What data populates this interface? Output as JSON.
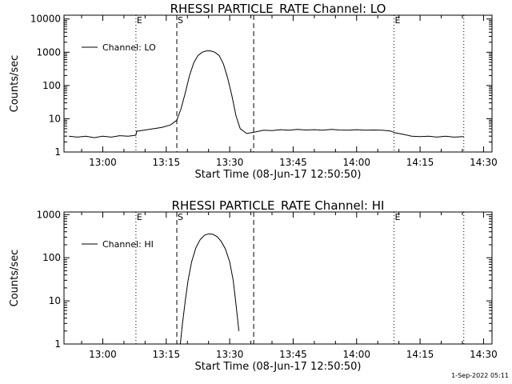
{
  "footer_timestamp": "1-Sep-2022 05:11",
  "chart_data": [
    {
      "type": "line",
      "title": "RHESSI PARTICLE_RATE Channel: LO",
      "xlabel": "Start Time (08-Jun-17 12:50:50)",
      "ylabel": "Counts/sec",
      "yscale": "log",
      "xlim": [
        "12:50:50",
        "14:32:00"
      ],
      "ylim": [
        1,
        13000
      ],
      "x_ticks": [
        "13:00",
        "13:15",
        "13:30",
        "13:45",
        "14:00",
        "14:15",
        "14:30"
      ],
      "y_ticks": [
        "1",
        "10",
        "100",
        "1000",
        "10000"
      ],
      "legend": {
        "position": "top-left",
        "entries": [
          "Channel: LO"
        ]
      },
      "vertical_markers": [
        {
          "time": "13:07:50",
          "style": "dotted",
          "label": "E"
        },
        {
          "time": "13:17:30",
          "style": "dashed",
          "label": "S"
        },
        {
          "time": "13:35:40",
          "style": "dashed",
          "label": ""
        },
        {
          "time": "14:08:50",
          "style": "dotted",
          "label": "E"
        },
        {
          "time": "14:25:20",
          "style": "dotted",
          "label": ""
        }
      ],
      "series": [
        {
          "name": "Channel: LO",
          "points": [
            [
              "12:52:00",
              3.0
            ],
            [
              "12:54:00",
              2.8
            ],
            [
              "12:56:00",
              3.0
            ],
            [
              "12:58:00",
              2.7
            ],
            [
              "13:00:00",
              3.0
            ],
            [
              "13:02:00",
              2.8
            ],
            [
              "13:04:00",
              3.1
            ],
            [
              "13:06:00",
              3.0
            ],
            [
              "13:07:50",
              3.2
            ],
            [
              "13:08:00",
              4.2
            ],
            [
              "13:10:00",
              4.6
            ],
            [
              "13:12:00",
              5.0
            ],
            [
              "13:14:00",
              5.5
            ],
            [
              "13:16:00",
              6.5
            ],
            [
              "13:17:30",
              9.0
            ],
            [
              "13:18:30",
              20
            ],
            [
              "13:19:30",
              60
            ],
            [
              "13:20:30",
              200
            ],
            [
              "13:21:30",
              480
            ],
            [
              "13:22:30",
              800
            ],
            [
              "13:23:30",
              1000
            ],
            [
              "13:24:30",
              1100
            ],
            [
              "13:25:30",
              1100
            ],
            [
              "13:26:30",
              1000
            ],
            [
              "13:27:30",
              800
            ],
            [
              "13:28:30",
              450
            ],
            [
              "13:29:30",
              170
            ],
            [
              "13:30:30",
              50
            ],
            [
              "13:31:30",
              12
            ],
            [
              "13:32:30",
              5.0
            ],
            [
              "13:34:00",
              3.6
            ],
            [
              "13:36:00",
              4.0
            ],
            [
              "13:38:00",
              4.5
            ],
            [
              "13:40:00",
              4.4
            ],
            [
              "13:42:00",
              4.7
            ],
            [
              "13:44:00",
              4.5
            ],
            [
              "13:46:00",
              4.8
            ],
            [
              "13:48:00",
              4.6
            ],
            [
              "13:50:00",
              4.7
            ],
            [
              "13:52:00",
              4.5
            ],
            [
              "13:54:00",
              4.8
            ],
            [
              "13:56:00",
              4.6
            ],
            [
              "13:58:00",
              4.5
            ],
            [
              "14:00:00",
              4.7
            ],
            [
              "14:02:00",
              4.5
            ],
            [
              "14:04:00",
              4.6
            ],
            [
              "14:06:00",
              4.5
            ],
            [
              "14:08:00",
              4.3
            ],
            [
              "14:09:00",
              3.8
            ],
            [
              "14:11:00",
              3.4
            ],
            [
              "14:13:00",
              3.0
            ],
            [
              "14:15:00",
              2.9
            ],
            [
              "14:17:00",
              3.0
            ],
            [
              "14:19:00",
              2.8
            ],
            [
              "14:21:00",
              3.0
            ],
            [
              "14:23:00",
              2.8
            ],
            [
              "14:25:20",
              2.9
            ]
          ]
        }
      ]
    },
    {
      "type": "line",
      "title": "RHESSI PARTICLE_RATE Channel: HI",
      "xlabel": "Start Time (08-Jun-17 12:50:50)",
      "ylabel": "Counts/sec",
      "yscale": "log",
      "xlim": [
        "12:50:50",
        "14:32:00"
      ],
      "ylim": [
        1,
        1150
      ],
      "x_ticks": [
        "13:00",
        "13:15",
        "13:30",
        "13:45",
        "14:00",
        "14:15",
        "14:30"
      ],
      "y_ticks": [
        "1",
        "10",
        "100",
        "1000"
      ],
      "legend": {
        "position": "top-left",
        "entries": [
          "Channel: HI"
        ]
      },
      "vertical_markers": [
        {
          "time": "13:07:50",
          "style": "dotted",
          "label": "E"
        },
        {
          "time": "13:17:30",
          "style": "dashed",
          "label": "S"
        },
        {
          "time": "13:35:40",
          "style": "dashed",
          "label": ""
        },
        {
          "time": "14:08:50",
          "style": "dotted",
          "label": "E"
        },
        {
          "time": "14:25:20",
          "style": "dotted",
          "label": ""
        }
      ],
      "series": [
        {
          "name": "Channel: HI",
          "points": [
            [
              "13:18:20",
              1.0
            ],
            [
              "13:18:50",
              3.0
            ],
            [
              "13:19:30",
              10
            ],
            [
              "13:20:10",
              30
            ],
            [
              "13:21:00",
              80
            ],
            [
              "13:22:00",
              170
            ],
            [
              "13:23:00",
              260
            ],
            [
              "13:24:00",
              330
            ],
            [
              "13:25:00",
              360
            ],
            [
              "13:26:00",
              350
            ],
            [
              "13:27:00",
              310
            ],
            [
              "13:28:00",
              240
            ],
            [
              "13:29:00",
              160
            ],
            [
              "13:30:00",
              80
            ],
            [
              "13:30:50",
              30
            ],
            [
              "13:31:30",
              8
            ],
            [
              "13:32:10",
              2.0
            ]
          ]
        }
      ]
    }
  ]
}
